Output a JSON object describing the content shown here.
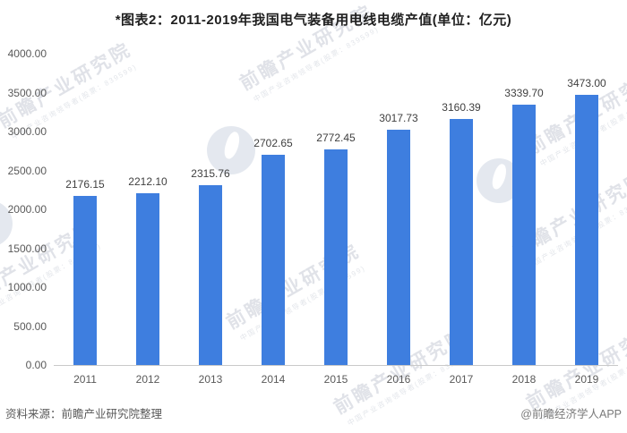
{
  "title": "*图表2：2011-2019年我国电气装备用电线电缆产值(单位：亿元)",
  "footer": {
    "source": "资料来源：前瞻产业研究院整理",
    "credit": "@前瞻经济学人APP"
  },
  "watermark": {
    "text": "前瞻产业研究院",
    "subtext": "中国产业咨询领导者(股票：839599)"
  },
  "colors": {
    "bar": "#3e7edf",
    "bar_label": "#3f3f3f",
    "axis_text": "#595959",
    "axis_line": "#c9c9c9",
    "watermark_text": "#c7ccd6",
    "watermark_logo": "#b9c5d6"
  },
  "chart_data": {
    "type": "bar",
    "title": "*图表2：2011-2019年我国电气装备用电线电缆产值(单位：亿元)",
    "categories": [
      "2011",
      "2012",
      "2013",
      "2014",
      "2015",
      "2016",
      "2017",
      "2018",
      "2019"
    ],
    "values": [
      2176.15,
      2212.1,
      2315.76,
      2702.65,
      2772.45,
      3017.73,
      3160.39,
      3339.7,
      3473.0
    ],
    "value_labels": [
      "2176.15",
      "2212.10",
      "2315.76",
      "2702.65",
      "2772.45",
      "3017.73",
      "3160.39",
      "3339.70",
      "3473.00"
    ],
    "xlabel": "",
    "ylabel": "",
    "unit": "亿元",
    "ylim": [
      0,
      4000
    ],
    "y_tick_step": 500,
    "y_ticks": [
      "4000.00",
      "3500.00",
      "3000.00",
      "2500.00",
      "2000.00",
      "1500.00",
      "1000.00",
      "500.00",
      "0.00"
    ],
    "grid": false,
    "legend_position": "none",
    "bar_color": "#3e7edf"
  }
}
